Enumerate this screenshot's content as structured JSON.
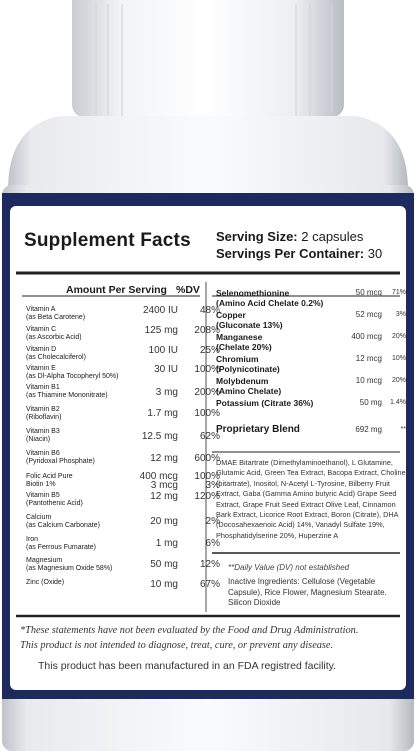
{
  "label": {
    "title": "Supplement Facts",
    "serving_size_label": "Serving Size:",
    "serving_size_value": " 2 capsules",
    "servings_label": "Servings Per Container:",
    "servings_value": " 30",
    "header_amount": "Amount Per Serving",
    "header_dv": "%DV",
    "left_nutrients": [
      {
        "name": "Vitamin A",
        "sub": "(as Beta Carotene)",
        "amount": "2400 IU",
        "dv": "48%"
      },
      {
        "name": "Vitamin C",
        "sub": "(as Ascorbic Acid)",
        "amount": "125 mg",
        "dv": "208%"
      },
      {
        "name": "Vitamin D",
        "sub": "(as Cholecalciferol)",
        "amount": "100 IU",
        "dv": "25%"
      },
      {
        "name": "Vitamin E",
        "sub": "(as Dl-Alpha Tocopheryl 50%)",
        "amount": "30 IU",
        "dv": "100%"
      },
      {
        "name": "Vitamin B1",
        "sub": "(as Thiamine Mononitrate)",
        "amount": "3 mg",
        "dv": "200%"
      },
      {
        "name": "Vitamin B2",
        "sub": "(Riboflavin)",
        "amount": "1.7 mg",
        "dv": "100%"
      },
      {
        "name": "Vitamin B3",
        "sub": "(Niacin)",
        "amount": "12.5 mg",
        "dv": "62%"
      },
      {
        "name": "Vitamin B6",
        "sub": "(Pyridoxal Phosphate)",
        "amount": "12 mg",
        "dv": "600%"
      },
      {
        "name": "Folic Acid Pure",
        "sub": "Biotin 1%",
        "amount": "400 mcg",
        "dv": "100%",
        "amount2": "3 mcg",
        "dv2": "3%"
      },
      {
        "name": "Vitamin B5",
        "sub": "(Pantothenic Acid)",
        "amount": "12 mg",
        "dv": "120%"
      },
      {
        "name": "Calcium",
        "sub": "(as Calcium Carbonate)",
        "amount": "20 mg",
        "dv": "2%"
      },
      {
        "name": "Iron",
        "sub": "(as Ferrous Fumarate)",
        "amount": "1 mg",
        "dv": "6%"
      },
      {
        "name": "Magnesium",
        "sub": "(as Magnesium Oxide 58%)",
        "amount": "50 mg",
        "dv": "12%"
      },
      {
        "name": "Zinc (Oxide)",
        "sub": "",
        "amount": "10 mg",
        "dv": "67%"
      }
    ],
    "right_nutrients": [
      {
        "name": "Selenomethionine",
        "sub": "(Amino Acid Chelate 0.2%)",
        "amount": "50 mcg",
        "dv": "71%"
      },
      {
        "name": "Copper",
        "sub": "(Gluconate 13%)",
        "amount": "52 mcg",
        "dv": "3%"
      },
      {
        "name": "Manganese",
        "sub": "(Chelate 20%)",
        "amount": "400 mcg",
        "dv": "20%"
      },
      {
        "name": "Chromium",
        "sub": "(Polynicotinate)",
        "amount": "12 mcg",
        "dv": "10%"
      },
      {
        "name": "Molybdenum",
        "sub": "(Amino Chelate)",
        "amount": "10 mcg",
        "dv": "20%"
      },
      {
        "name": "Potassium (Citrate 36%)",
        "sub": "",
        "amount": "50 mg",
        "dv": "1.4%"
      }
    ],
    "blend_name": "Proprietary Blend",
    "blend_amount": "692 mg",
    "blend_dv": "**",
    "blend_ingredients": "DMAE Bitartrate (Dimethylaminoethanol), L Glutamine, Glutamic Acid, Green Tea Extract, Bacopa Extract, Choline (bitartrate), Inositol, N-Acetyl L-Tyrosine, Bilberry Fruit Extract, Gaba (Gamma Amino butyric Acid) Grape Seed Extract, Grape Fruit Seed Extract Olive Leaf, Cinnamon Bark Extract, Licorice Root Extract, Boron (Citrate), DHA (Docosahexaenoic Acid) 14%, Vanadyl Sulfate 19%, Phosphatidylserine 20%, Huperzine A",
    "dv_note": "**Daily Value (DV) not established",
    "inactive": "Inactive Ingredients: Cellulose (Vegetable Capsule), Rice Flower, Magnesium Stearate. Silicon Dioxide",
    "disclaimer_1": "*These statements have not been evaluated by the Food and Drug Administration.",
    "disclaimer_2": "This product is not intended to diagnose, treat, cure, or prevent any disease.",
    "fda_note": "This product has been manufactured in an FDA registred facility."
  },
  "colors": {
    "navy_band": "#1c2a5e",
    "bottle_white": "#f4f5f7",
    "label_white": "#ffffff"
  }
}
